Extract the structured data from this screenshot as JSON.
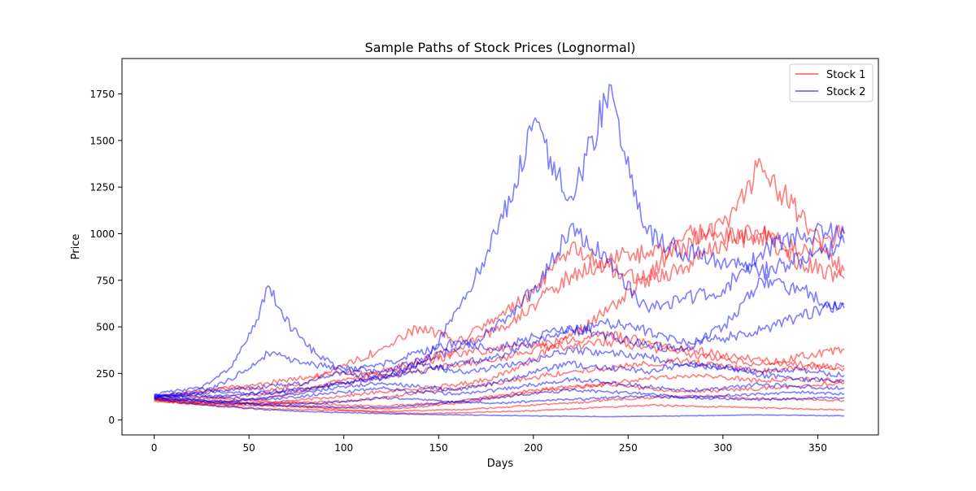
{
  "chart_data": {
    "type": "line",
    "title": "Sample Paths of Stock Prices (Lognormal)",
    "xlabel": "Days",
    "ylabel": "Price",
    "xlim": [
      -17,
      382
    ],
    "ylim": [
      -80,
      1940
    ],
    "xticks": [
      0,
      50,
      100,
      150,
      200,
      250,
      300,
      350
    ],
    "yticks": [
      0,
      250,
      500,
      750,
      1000,
      1250,
      1500,
      1750
    ],
    "grid": false,
    "legend": {
      "position": "top-right",
      "entries": [
        "Stock 1",
        "Stock 2"
      ]
    },
    "series_colors": {
      "Stock 1": "#ff0000",
      "Stock 2": "#0000ff"
    },
    "series_opacity": 0.5,
    "series": [
      {
        "name": "Stock 1",
        "path": 1,
        "x": [
          0,
          20,
          40,
          60,
          80,
          100,
          120,
          140,
          160,
          180,
          200,
          220,
          240,
          260,
          280,
          300,
          320,
          340,
          364
        ],
        "y": [
          110,
          90,
          85,
          95,
          110,
          130,
          150,
          170,
          190,
          230,
          330,
          450,
          600,
          760,
          820,
          950,
          1000,
          900,
          1000
        ]
      },
      {
        "name": "Stock 1",
        "path": 2,
        "x": [
          0,
          20,
          40,
          60,
          80,
          100,
          120,
          140,
          160,
          180,
          200,
          220,
          240,
          260,
          280,
          300,
          320,
          340,
          364
        ],
        "y": [
          115,
          105,
          100,
          120,
          160,
          220,
          260,
          320,
          380,
          480,
          620,
          780,
          860,
          900,
          920,
          1050,
          1380,
          1100,
          800
        ]
      },
      {
        "name": "Stock 1",
        "path": 3,
        "x": [
          0,
          20,
          40,
          60,
          80,
          100,
          120,
          140,
          160,
          180,
          200,
          220,
          240,
          260,
          280,
          300,
          320,
          340,
          364
        ],
        "y": [
          120,
          140,
          180,
          160,
          200,
          300,
          380,
          500,
          420,
          550,
          680,
          940,
          820,
          760,
          1000,
          980,
          1000,
          850,
          760
        ]
      },
      {
        "name": "Stock 1",
        "path": 4,
        "x": [
          0,
          20,
          40,
          60,
          80,
          100,
          120,
          140,
          160,
          180,
          200,
          220,
          240,
          260,
          280,
          300,
          320,
          340,
          364
        ],
        "y": [
          108,
          110,
          125,
          140,
          170,
          200,
          230,
          260,
          300,
          320,
          380,
          400,
          420,
          390,
          360,
          330,
          300,
          340,
          380
        ]
      },
      {
        "name": "Stock 1",
        "path": 5,
        "x": [
          0,
          20,
          40,
          60,
          80,
          100,
          120,
          140,
          160,
          180,
          200,
          220,
          240,
          260,
          280,
          300,
          320,
          340,
          364
        ],
        "y": [
          112,
          95,
          90,
          85,
          95,
          100,
          120,
          150,
          170,
          200,
          230,
          260,
          280,
          300,
          320,
          290,
          260,
          280,
          290
        ]
      },
      {
        "name": "Stock 1",
        "path": 6,
        "x": [
          0,
          20,
          40,
          60,
          80,
          100,
          120,
          140,
          160,
          180,
          200,
          220,
          240,
          260,
          280,
          300,
          320,
          340,
          364
        ],
        "y": [
          100,
          90,
          80,
          75,
          70,
          65,
          60,
          70,
          90,
          120,
          150,
          170,
          200,
          220,
          240,
          230,
          210,
          220,
          210
        ]
      },
      {
        "name": "Stock 1",
        "path": 7,
        "x": [
          0,
          20,
          40,
          60,
          80,
          100,
          120,
          140,
          160,
          180,
          200,
          220,
          240,
          260,
          280,
          300,
          320,
          340,
          364
        ],
        "y": [
          118,
          130,
          110,
          100,
          90,
          80,
          75,
          85,
          100,
          130,
          160,
          180,
          190,
          170,
          150,
          160,
          170,
          180,
          200
        ]
      },
      {
        "name": "Stock 1",
        "path": 8,
        "x": [
          0,
          20,
          40,
          60,
          80,
          100,
          120,
          140,
          160,
          180,
          200,
          220,
          240,
          260,
          280,
          300,
          320,
          340,
          364
        ],
        "y": [
          105,
          85,
          70,
          60,
          55,
          50,
          45,
          50,
          55,
          65,
          80,
          90,
          110,
          120,
          130,
          125,
          115,
          110,
          105
        ]
      },
      {
        "name": "Stock 1",
        "path": 9,
        "x": [
          0,
          20,
          40,
          60,
          80,
          100,
          120,
          140,
          160,
          180,
          200,
          220,
          240,
          260,
          280,
          300,
          320,
          340,
          364
        ],
        "y": [
          110,
          100,
          95,
          80,
          70,
          55,
          40,
          35,
          38,
          45,
          50,
          60,
          70,
          80,
          75,
          70,
          65,
          60,
          55
        ]
      },
      {
        "name": "Stock 1",
        "path": 10,
        "x": [
          0,
          20,
          40,
          60,
          80,
          100,
          120,
          140,
          160,
          180,
          200,
          220,
          240,
          260,
          280,
          300,
          320,
          340,
          364
        ],
        "y": [
          125,
          150,
          170,
          200,
          230,
          260,
          240,
          300,
          360,
          380,
          400,
          430,
          460,
          420,
          380,
          350,
          320,
          300,
          280
        ]
      },
      {
        "name": "Stock 2",
        "path": 1,
        "x": [
          0,
          20,
          40,
          60,
          80,
          100,
          120,
          140,
          160,
          180,
          200,
          220,
          240,
          260,
          280,
          300,
          320,
          340,
          364
        ],
        "y": [
          130,
          150,
          280,
          720,
          400,
          260,
          220,
          300,
          600,
          1000,
          1600,
          1200,
          1800,
          1000,
          900,
          850,
          800,
          850,
          950
        ]
      },
      {
        "name": "Stock 2",
        "path": 2,
        "x": [
          0,
          20,
          40,
          60,
          80,
          100,
          120,
          140,
          160,
          180,
          200,
          220,
          240,
          260,
          280,
          300,
          320,
          340,
          364
        ],
        "y": [
          125,
          130,
          220,
          360,
          300,
          280,
          260,
          320,
          380,
          500,
          700,
          1050,
          850,
          600,
          650,
          700,
          900,
          1000,
          1000
        ]
      },
      {
        "name": "Stock 2",
        "path": 3,
        "x": [
          0,
          20,
          40,
          60,
          80,
          100,
          120,
          140,
          160,
          180,
          200,
          220,
          240,
          260,
          280,
          300,
          320,
          340,
          364
        ],
        "y": [
          120,
          140,
          160,
          180,
          200,
          260,
          300,
          360,
          420,
          380,
          450,
          500,
          450,
          400,
          380,
          500,
          760,
          700,
          600
        ]
      },
      {
        "name": "Stock 2",
        "path": 4,
        "x": [
          0,
          20,
          40,
          60,
          80,
          100,
          120,
          140,
          160,
          180,
          200,
          220,
          240,
          260,
          280,
          300,
          320,
          340,
          364
        ],
        "y": [
          135,
          120,
          130,
          150,
          170,
          200,
          230,
          260,
          300,
          340,
          420,
          480,
          520,
          480,
          420,
          440,
          480,
          560,
          620
        ]
      },
      {
        "name": "Stock 2",
        "path": 5,
        "x": [
          0,
          20,
          40,
          60,
          80,
          100,
          120,
          140,
          160,
          180,
          200,
          220,
          240,
          260,
          280,
          300,
          320,
          340,
          364
        ],
        "y": [
          128,
          110,
          100,
          120,
          150,
          180,
          200,
          180,
          160,
          200,
          260,
          300,
          280,
          260,
          300,
          280,
          240,
          220,
          210
        ]
      },
      {
        "name": "Stock 2",
        "path": 6,
        "x": [
          0,
          20,
          40,
          60,
          80,
          100,
          120,
          140,
          160,
          180,
          200,
          220,
          240,
          260,
          280,
          300,
          320,
          340,
          364
        ],
        "y": [
          132,
          140,
          120,
          110,
          130,
          150,
          170,
          150,
          140,
          160,
          190,
          220,
          200,
          180,
          160,
          170,
          190,
          180,
          170
        ]
      },
      {
        "name": "Stock 2",
        "path": 7,
        "x": [
          0,
          20,
          40,
          60,
          80,
          100,
          120,
          140,
          160,
          180,
          200,
          220,
          240,
          260,
          280,
          300,
          320,
          340,
          364
        ],
        "y": [
          118,
          100,
          90,
          80,
          75,
          70,
          65,
          80,
          100,
          120,
          140,
          160,
          150,
          140,
          120,
          130,
          140,
          150,
          140
        ]
      },
      {
        "name": "Stock 2",
        "path": 8,
        "x": [
          0,
          20,
          40,
          60,
          80,
          100,
          120,
          140,
          160,
          180,
          200,
          220,
          240,
          260,
          280,
          300,
          320,
          340,
          364
        ],
        "y": [
          122,
          105,
          95,
          90,
          85,
          100,
          120,
          110,
          95,
          90,
          100,
          110,
          120,
          130,
          120,
          115,
          110,
          115,
          120
        ]
      },
      {
        "name": "Stock 2",
        "path": 9,
        "x": [
          0,
          20,
          40,
          60,
          80,
          100,
          120,
          140,
          160,
          180,
          200,
          220,
          240,
          260,
          280,
          300,
          320,
          340,
          364
        ],
        "y": [
          115,
          90,
          70,
          55,
          45,
          40,
          35,
          30,
          28,
          25,
          22,
          20,
          18,
          20,
          22,
          25,
          28,
          25,
          22
        ]
      },
      {
        "name": "Stock 2",
        "path": 10,
        "x": [
          0,
          20,
          40,
          60,
          80,
          100,
          120,
          140,
          160,
          180,
          200,
          220,
          240,
          260,
          280,
          300,
          320,
          340,
          364
        ],
        "y": [
          138,
          170,
          150,
          140,
          160,
          200,
          240,
          300,
          260,
          280,
          320,
          380,
          360,
          340,
          300,
          280,
          260,
          270,
          240
        ]
      }
    ]
  }
}
